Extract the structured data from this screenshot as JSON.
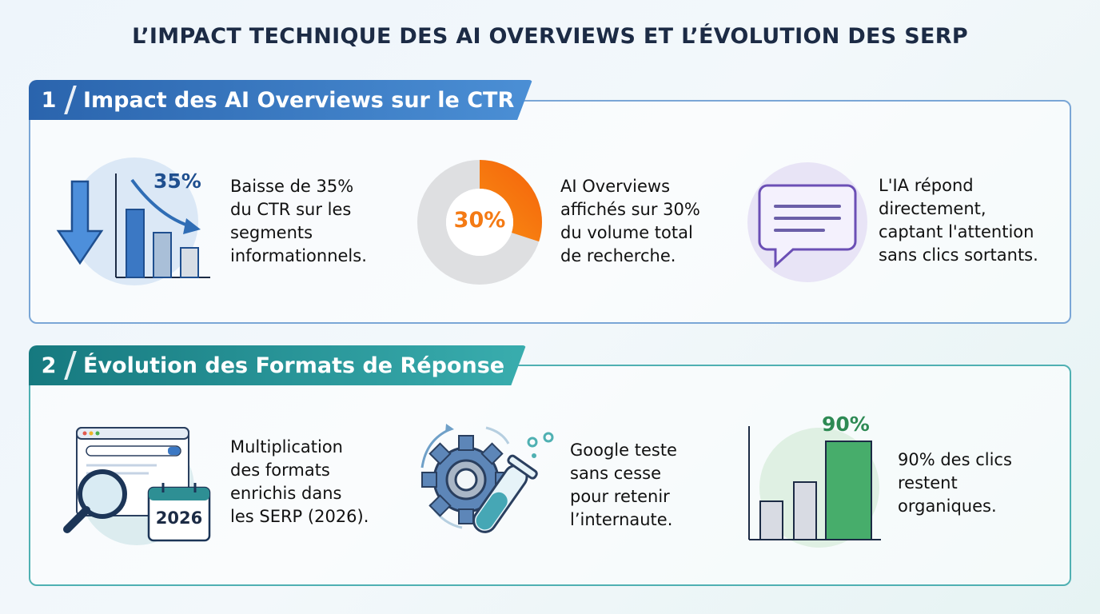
{
  "title": "L’IMPACT TECHNIQUE DES AI OVERVIEWS ET L’ÉVOLUTION DES SERP",
  "sections": [
    {
      "number": "1",
      "heading": "Impact des AI Overviews sur le CTR",
      "accent": "#2f6db5",
      "items": [
        {
          "icon": "down-arrow-bar-chart-icon",
          "stat": "35%",
          "text": [
            "Baisse de 35%",
            "du CTR sur les",
            "segments",
            "informationnels."
          ]
        },
        {
          "icon": "donut-chart-icon",
          "stat": "30%",
          "value_percent": 30,
          "text": [
            "AI Overviews",
            "affichés sur 30%",
            "du volume total",
            "de recherche."
          ]
        },
        {
          "icon": "chat-bubble-icon",
          "text": [
            "L'IA répond",
            "directement,",
            "captant l'attention",
            "sans clics sortants."
          ]
        }
      ]
    },
    {
      "number": "2",
      "heading": "Évolution des Formats de Réponse",
      "accent": "#1d8a8f",
      "items": [
        {
          "icon": "browser-search-calendar-icon",
          "stat": "2026",
          "text": [
            "Multiplication",
            "des formats",
            "enrichis dans",
            "les SERP (2026)."
          ]
        },
        {
          "icon": "gear-test-tube-icon",
          "text": [
            "Google teste",
            "sans cesse",
            "pour retenir",
            "l’internaute."
          ]
        },
        {
          "icon": "green-bar-chart-icon",
          "stat": "90%",
          "text": [
            "90% des clics",
            "restent",
            "organiques."
          ]
        }
      ]
    }
  ],
  "colors": {
    "blue": "#2f6db5",
    "teal": "#1d8a8f",
    "orange": "#f47a14",
    "green": "#2e9e5b",
    "purple": "#7a5cc4"
  }
}
